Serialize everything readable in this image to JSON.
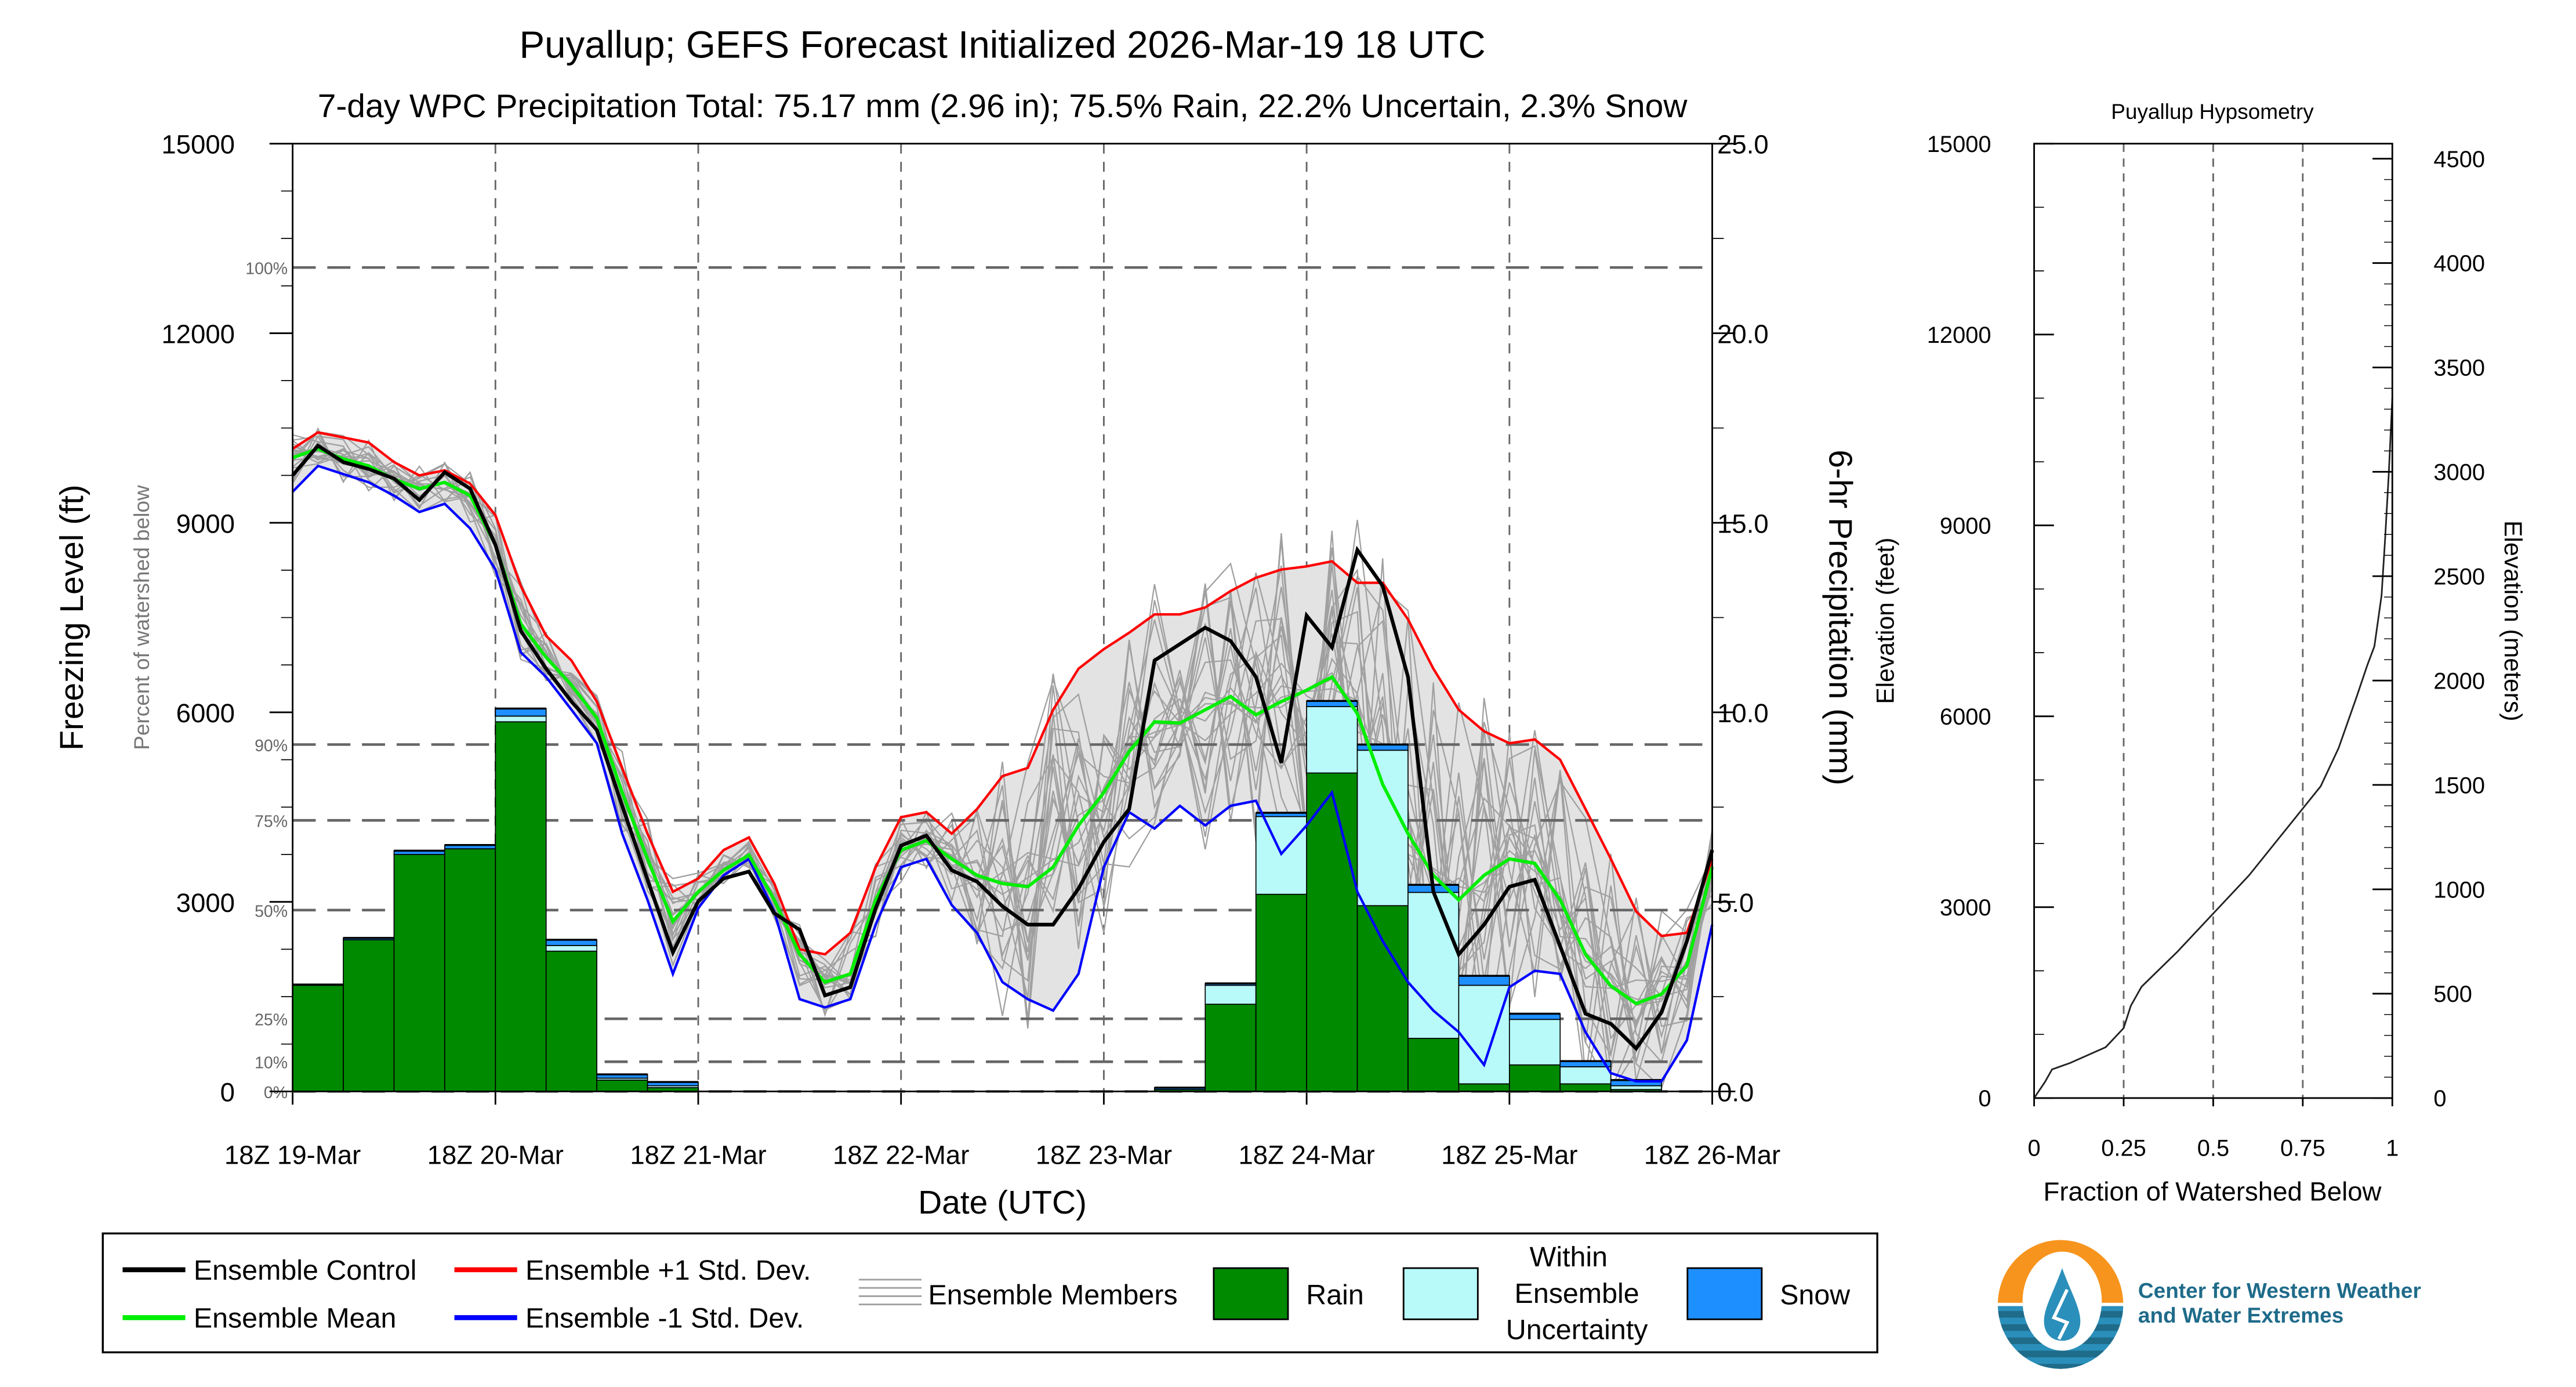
{
  "title": "Puyallup; GEFS Forecast Initialized 2026-Mar-19 18 UTC",
  "subtitle": "7-day WPC Precipitation Total: 75.17 mm (2.96 in);  75.5% Rain, 22.2% Uncertain, 2.3% Snow",
  "colors": {
    "control": "#000000",
    "mean": "#00ee00",
    "plus_std": "#ff0000",
    "minus_std": "#0000ff",
    "members": "#a0a0a0",
    "band": "#e3e3e3",
    "rain": "#008a00",
    "uncertain": "#b8fafa",
    "snow": "#1e8fff"
  },
  "chart_data": [
    {
      "type": "line+bar",
      "xlabel": "Date (UTC)",
      "ylabel_left": "Freezing Level (ft)",
      "ylabel_right": "6-hr Precipitation (mm)",
      "percent_axis_label": "Percent of watershed below",
      "ylim_left": [
        0,
        15000
      ],
      "ylim_right": [
        0,
        25
      ],
      "left_ticks": [
        "0",
        "3000",
        "6000",
        "9000",
        "12000",
        "15000"
      ],
      "right_ticks": [
        "0.0",
        "5.0",
        "10.0",
        "15.0",
        "20.0",
        "25.0"
      ],
      "x_ticks": [
        "18Z 19-Mar",
        "18Z 20-Mar",
        "18Z 21-Mar",
        "18Z 22-Mar",
        "18Z 23-Mar",
        "18Z 24-Mar",
        "18Z 25-Mar",
        "18Z 26-Mar"
      ],
      "percent_lines": [
        {
          "label": "100%",
          "ft": 13040
        },
        {
          "label": "90%",
          "ft": 5490
        },
        {
          "label": "75%",
          "ft": 4290
        },
        {
          "label": "50%",
          "ft": 2870
        },
        {
          "label": "25%",
          "ft": 1150
        },
        {
          "label": "10%",
          "ft": 470
        },
        {
          "label": "0%",
          "ft": 0
        }
      ],
      "line_step_hours": 3,
      "series": [
        {
          "name": "Ensemble Control",
          "values": [
            9750,
            10220,
            9960,
            9850,
            9700,
            9360,
            9800,
            9540,
            8650,
            7290,
            6690,
            6170,
            5720,
            4520,
            3350,
            2200,
            3010,
            3370,
            3480,
            2820,
            2560,
            1520,
            1650,
            2900,
            3890,
            4050,
            3500,
            3320,
            2930,
            2640,
            2640,
            3210,
            3950,
            4470,
            6820,
            7080,
            7340,
            7130,
            6560,
            5200,
            7530,
            7030,
            8570,
            8000,
            6560,
            3160,
            2170,
            2640,
            3240,
            3350,
            2300,
            1230,
            1070,
            680,
            1250,
            2380,
            3820
          ]
        },
        {
          "name": "Ensemble Mean",
          "values": [
            10030,
            10170,
            10010,
            9900,
            9690,
            9540,
            9640,
            9430,
            8650,
            7400,
            6870,
            6430,
            5910,
            4730,
            3680,
            2690,
            3160,
            3500,
            3740,
            3030,
            2170,
            1730,
            1860,
            3030,
            3820,
            3970,
            3680,
            3420,
            3290,
            3240,
            3550,
            4210,
            4730,
            5380,
            5850,
            5830,
            6040,
            6250,
            5960,
            6170,
            6350,
            6560,
            5980,
            4860,
            4080,
            3420,
            3030,
            3420,
            3680,
            3610,
            3030,
            2170,
            1670,
            1390,
            1540,
            1990,
            3550
          ]
        },
        {
          "name": "Ensemble +1 Std. Dev.",
          "values": [
            10170,
            10430,
            10350,
            10270,
            9960,
            9750,
            9830,
            9620,
            9120,
            8000,
            7210,
            6820,
            6170,
            5120,
            4080,
            3160,
            3370,
            3820,
            4020,
            3290,
            2250,
            2170,
            2510,
            3550,
            4340,
            4420,
            4080,
            4470,
            4990,
            5120,
            6040,
            6690,
            7000,
            7260,
            7550,
            7550,
            7660,
            7920,
            8130,
            8260,
            8310,
            8390,
            8050,
            8050,
            7470,
            6690,
            6040,
            5700,
            5510,
            5570,
            5250,
            4470,
            3680,
            2850,
            2460,
            2510,
            3680
          ]
        },
        {
          "name": "Ensemble -1 Std. Dev.",
          "values": [
            9490,
            9900,
            9770,
            9640,
            9430,
            9170,
            9300,
            8910,
            8260,
            6950,
            6560,
            6040,
            5510,
            4080,
            3030,
            1860,
            2900,
            3420,
            3680,
            2850,
            1460,
            1330,
            1460,
            2640,
            3550,
            3680,
            2950,
            2510,
            1730,
            1460,
            1280,
            1860,
            3550,
            4420,
            4160,
            4520,
            4210,
            4520,
            4600,
            3760,
            4210,
            4730,
            3160,
            2380,
            1730,
            1280,
            940,
            420,
            1650,
            1910,
            1860,
            940,
            290,
            160,
            160,
            810,
            2640
          ]
        }
      ],
      "precip_bins_6h_mm": [
        {
          "rain": 2.8,
          "uncertain": 0,
          "snow": 0.02
        },
        {
          "rain": 4.0,
          "uncertain": 0,
          "snow": 0.05
        },
        {
          "rain": 6.25,
          "uncertain": 0,
          "snow": 0.1
        },
        {
          "rain": 6.4,
          "uncertain": 0,
          "snow": 0.1
        },
        {
          "rain": 9.75,
          "uncertain": 0.15,
          "snow": 0.2
        },
        {
          "rain": 3.7,
          "uncertain": 0.15,
          "snow": 0.15
        },
        {
          "rain": 0.3,
          "uncertain": 0.05,
          "snow": 0.1
        },
        {
          "rain": 0.1,
          "uncertain": 0.05,
          "snow": 0.1
        },
        {
          "rain": 0,
          "uncertain": 0,
          "snow": 0
        },
        {
          "rain": 0,
          "uncertain": 0,
          "snow": 0
        },
        {
          "rain": 0,
          "uncertain": 0,
          "snow": 0
        },
        {
          "rain": 0,
          "uncertain": 0,
          "snow": 0
        },
        {
          "rain": 0,
          "uncertain": 0,
          "snow": 0
        },
        {
          "rain": 0,
          "uncertain": 0,
          "snow": 0
        },
        {
          "rain": 0,
          "uncertain": 0,
          "snow": 0
        },
        {
          "rain": 0,
          "uncertain": 0,
          "snow": 0
        },
        {
          "rain": 0,
          "uncertain": 0,
          "snow": 0
        },
        {
          "rain": 0.05,
          "uncertain": 0,
          "snow": 0.05
        },
        {
          "rain": 2.3,
          "uncertain": 0.5,
          "snow": 0.05
        },
        {
          "rain": 5.2,
          "uncertain": 2.05,
          "snow": 0.1
        },
        {
          "rain": 8.4,
          "uncertain": 1.75,
          "snow": 0.15
        },
        {
          "rain": 4.9,
          "uncertain": 4.1,
          "snow": 0.15
        },
        {
          "rain": 1.4,
          "uncertain": 3.85,
          "snow": 0.2
        },
        {
          "rain": 0.2,
          "uncertain": 2.6,
          "snow": 0.25
        },
        {
          "rain": 0.7,
          "uncertain": 1.2,
          "snow": 0.15
        },
        {
          "rain": 0.2,
          "uncertain": 0.45,
          "snow": 0.15
        },
        {
          "rain": 0.05,
          "uncertain": 0.1,
          "snow": 0.15
        },
        {
          "rain": 0,
          "uncertain": 0,
          "snow": 0
        }
      ]
    },
    {
      "type": "line",
      "title": "Puyallup Hypsometry",
      "xlabel": "Fraction of Watershed Below",
      "ylabel_left": "Elevation (feet)",
      "ylabel_right": "Elevation (meters)",
      "xlim": [
        0,
        1
      ],
      "ylim_left": [
        0,
        15000
      ],
      "left_ticks": [
        "0",
        "3000",
        "6000",
        "9000",
        "12000",
        "15000"
      ],
      "right_ticks": [
        "0",
        "500",
        "1000",
        "1500",
        "2000",
        "2500",
        "3000",
        "3500",
        "4000",
        "4500"
      ],
      "x_ticks": [
        "0",
        "0.25",
        "0.5",
        "0.75",
        "1"
      ],
      "x": [
        0,
        0.03,
        0.05,
        0.1,
        0.2,
        0.25,
        0.27,
        0.3,
        0.4,
        0.5,
        0.6,
        0.7,
        0.8,
        0.85,
        0.9,
        0.93,
        0.95,
        0.97,
        0.98,
        0.99,
        1.0
      ],
      "y_ft": [
        0,
        250,
        450,
        550,
        800,
        1100,
        1450,
        1750,
        2300,
        2900,
        3500,
        4200,
        4900,
        5500,
        6300,
        6800,
        7100,
        7900,
        8800,
        9800,
        11000
      ]
    }
  ],
  "legend": {
    "control": "Ensemble Control",
    "mean": "Ensemble Mean",
    "plus": "Ensemble +1 Std. Dev.",
    "minus": "Ensemble -1 Std. Dev.",
    "members": "Ensemble Members",
    "rain": "Rain",
    "uncertain_1": "Within",
    "uncertain_2": "Ensemble",
    "uncertain_3": "Uncertainty",
    "snow": "Snow"
  },
  "logo": {
    "line1": "Center for Western Weather",
    "line2": "and Water Extremes"
  }
}
